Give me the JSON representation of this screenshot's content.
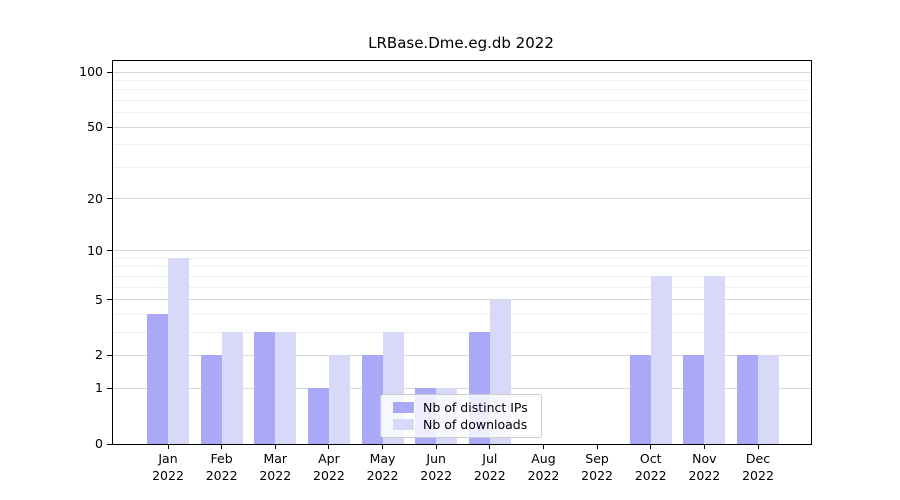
{
  "chart_data": {
    "type": "bar",
    "title": "LRBase.Dme.eg.db 2022",
    "categories": [
      "Jan 2022",
      "Feb 2022",
      "Mar 2022",
      "Apr 2022",
      "May 2022",
      "Jun 2022",
      "Jul 2022",
      "Aug 2022",
      "Sep 2022",
      "Oct 2022",
      "Nov 2022",
      "Dec 2022"
    ],
    "series": [
      {
        "name": "Nb of distinct IPs",
        "color": "#a9a9f7",
        "values": [
          4,
          2,
          3,
          1,
          2,
          1,
          3,
          0,
          0,
          2,
          2,
          2
        ]
      },
      {
        "name": "Nb of downloads",
        "color": "#d8d8f8",
        "values": [
          9,
          3,
          3,
          2,
          3,
          1,
          5,
          0,
          0,
          7,
          7,
          2
        ]
      }
    ],
    "xlabel": "",
    "ylabel": "",
    "y_axis": {
      "scale": "log1p",
      "major_ticks": [
        0,
        1,
        2,
        5,
        10,
        20,
        50,
        100
      ],
      "minor_gridlines": [
        3,
        4,
        6,
        7,
        8,
        9,
        30,
        40,
        60,
        70,
        80,
        90
      ],
      "ylim": [
        0,
        113
      ]
    },
    "grid": true,
    "legend_position": "lower-center",
    "colors": {
      "major_grid": "#d9d9d9",
      "minor_grid": "#f0f0f0",
      "axis": "#000000",
      "legend_border": "#cccccc",
      "background": "#ffffff"
    }
  }
}
